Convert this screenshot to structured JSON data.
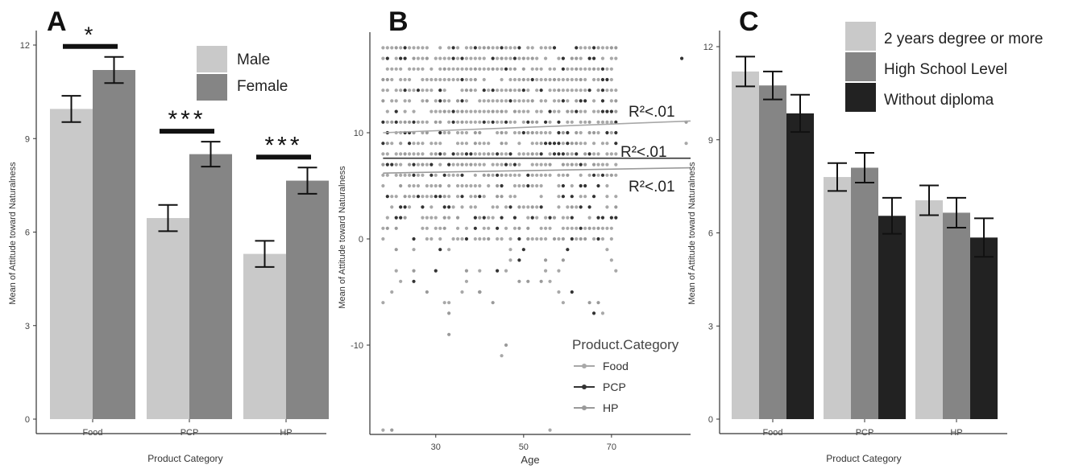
{
  "panels": {
    "A": {
      "letter": "A"
    },
    "B": {
      "letter": "B"
    },
    "C": {
      "letter": "C"
    }
  },
  "colors": {
    "light": "#c9c9c9",
    "mid": "#858585",
    "dark": "#222222",
    "axis": "#333333"
  },
  "chart_data": [
    {
      "panel": "A",
      "type": "bar",
      "xlabel": "Product Category",
      "ylabel": "Mean of Attitude toward Naturalness",
      "categories": [
        "Food",
        "PCP",
        "HP"
      ],
      "ylim": [
        0,
        12
      ],
      "yticks": [
        0,
        3,
        6,
        9,
        12
      ],
      "series": [
        {
          "name": "Male",
          "color": "#c9c9c9",
          "values": [
            9.95,
            6.45,
            5.3
          ],
          "err": [
            0.42,
            0.42,
            0.42
          ]
        },
        {
          "name": "Female",
          "color": "#858585",
          "values": [
            11.2,
            8.5,
            7.65
          ],
          "err": [
            0.42,
            0.4,
            0.42
          ]
        }
      ],
      "significance": [
        "*",
        "***",
        "***"
      ],
      "legend": [
        "Male",
        "Female"
      ],
      "legend_position": "top-right"
    },
    {
      "panel": "B",
      "type": "scatter",
      "xlabel": "Age",
      "ylabel": "Mean of Attitude toward Naturalness",
      "xlim": [
        15,
        88
      ],
      "ylim": [
        -19,
        19
      ],
      "xticks": [
        30,
        50,
        70
      ],
      "yticks": [
        -10,
        0,
        10
      ],
      "legend_title": "Product.Category",
      "legend_position": "bottom-right",
      "series": [
        {
          "name": "Food",
          "color": "#a8a8a8",
          "trend": [
            [
              18,
              10.0
            ],
            [
              88,
              11.1
            ]
          ],
          "r2": "R²<.01"
        },
        {
          "name": "PCP",
          "color": "#333333",
          "trend": [
            [
              18,
              7.6
            ],
            [
              88,
              7.6
            ]
          ],
          "r2": "R²<.01"
        },
        {
          "name": "HP",
          "color": "#9a9a9a",
          "trend": [
            [
              18,
              6.2
            ],
            [
              88,
              6.7
            ]
          ],
          "r2": "R²<.01"
        }
      ],
      "point_rows": [
        18,
        17,
        16,
        15,
        14,
        13,
        12,
        11,
        10,
        9,
        8,
        7,
        6,
        5,
        4,
        3,
        2,
        1,
        0,
        -1,
        -2,
        -3,
        -4,
        -5,
        -6
      ],
      "outliers": [
        {
          "x": 18,
          "y": -18,
          "s": 0
        },
        {
          "x": 20,
          "y": -18,
          "s": 2
        },
        {
          "x": 56,
          "y": -18,
          "s": 0
        },
        {
          "x": 33,
          "y": -9,
          "s": 2
        },
        {
          "x": 45,
          "y": -11,
          "s": 0
        },
        {
          "x": 46,
          "y": -10,
          "s": 2
        },
        {
          "x": 32,
          "y": -6,
          "s": 0
        },
        {
          "x": 33,
          "y": -7,
          "s": 2
        },
        {
          "x": 66,
          "y": -7,
          "s": 1
        },
        {
          "x": 68,
          "y": -7,
          "s": 0
        },
        {
          "x": 20,
          "y": -5,
          "s": 0
        },
        {
          "x": 40,
          "y": -5,
          "s": 2
        },
        {
          "x": 61,
          "y": -5,
          "s": 1
        },
        {
          "x": 86,
          "y": 17,
          "s": 1
        },
        {
          "x": 87,
          "y": 9,
          "s": 0
        },
        {
          "x": 87,
          "y": 11,
          "s": 2
        },
        {
          "x": 37,
          "y": -4,
          "s": 0
        },
        {
          "x": 49,
          "y": -4,
          "s": 2
        }
      ]
    },
    {
      "panel": "C",
      "type": "bar",
      "xlabel": "Product Category",
      "ylabel": "Mean of Attitude toward Naturalness",
      "categories": [
        "Food",
        "PCP",
        "HP"
      ],
      "ylim": [
        0,
        12
      ],
      "yticks": [
        0,
        3,
        6,
        9,
        12
      ],
      "series": [
        {
          "name": "2 years degree or more",
          "color": "#c9c9c9",
          "values": [
            11.2,
            7.8,
            7.05
          ],
          "err": [
            0.48,
            0.45,
            0.48
          ]
        },
        {
          "name": "High School Level",
          "color": "#858585",
          "values": [
            10.75,
            8.1,
            6.65
          ],
          "err": [
            0.45,
            0.48,
            0.48
          ]
        },
        {
          "name": "Without diploma",
          "color": "#222222",
          "values": [
            9.85,
            6.55,
            5.85
          ],
          "err": [
            0.6,
            0.58,
            0.62
          ]
        }
      ],
      "legend": [
        "2 years degree or more",
        "High School Level",
        "Without diploma"
      ],
      "legend_position": "top-right"
    }
  ]
}
